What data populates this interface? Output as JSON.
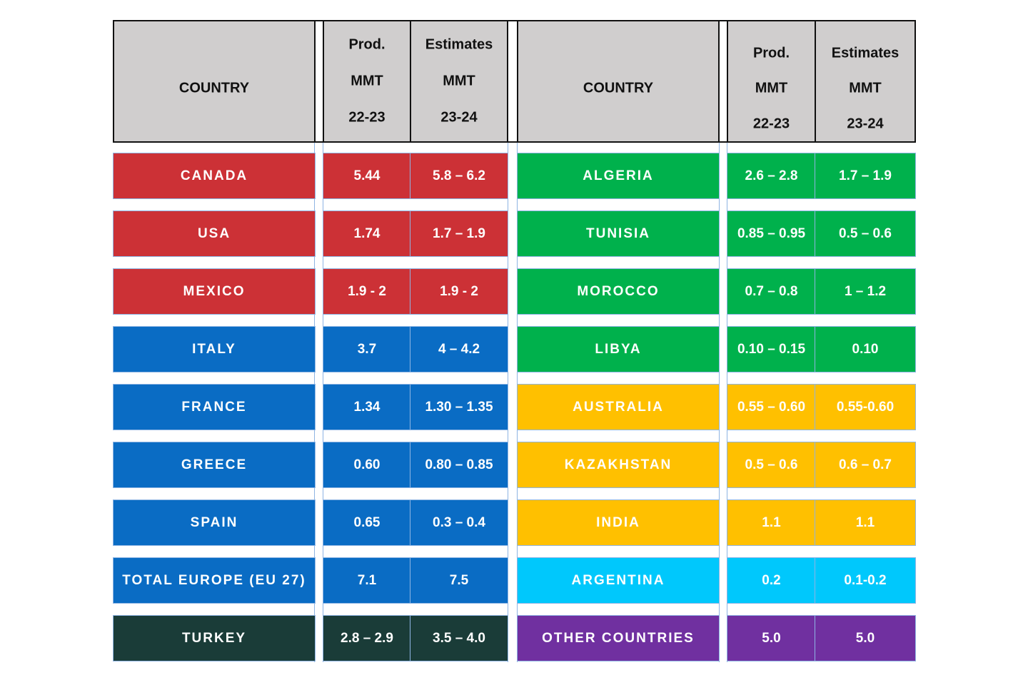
{
  "header": {
    "left": {
      "country": "COUNTRY",
      "prod": [
        "Prod.",
        "MMT",
        "22-23"
      ],
      "est": [
        "Estimates",
        "MMT",
        "23-24"
      ]
    },
    "right": {
      "country": "COUNTRY",
      "prod": [
        "Prod.",
        "MMT",
        "22-23"
      ],
      "est": [
        "Estimates",
        "MMT",
        "23-24"
      ]
    }
  },
  "table": {
    "left": [
      {
        "country": "CANADA",
        "prod": "5.44",
        "est": "5.8 – 6.2",
        "color": "#cc3136"
      },
      {
        "country": "USA",
        "prod": "1.74",
        "est": "1.7 – 1.9",
        "color": "#cc3136"
      },
      {
        "country": "MEXICO",
        "prod": "1.9 - 2",
        "est": "1.9 - 2",
        "color": "#cc3136"
      },
      {
        "country": "ITALY",
        "prod": "3.7",
        "est": "4 – 4.2",
        "color": "#0a6cc4"
      },
      {
        "country": "FRANCE",
        "prod": "1.34",
        "est": "1.30 – 1.35",
        "color": "#0a6cc4"
      },
      {
        "country": "GREECE",
        "prod": "0.60",
        "est": "0.80 – 0.85",
        "color": "#0a6cc4"
      },
      {
        "country": "SPAIN",
        "prod": "0.65",
        "est": "0.3 – 0.4",
        "color": "#0a6cc4"
      },
      {
        "country": "TOTAL EUROPE (EU 27)",
        "prod": "7.1",
        "est": "7.5",
        "color": "#0a6cc4"
      },
      {
        "country": "TURKEY",
        "prod": "2.8 – 2.9",
        "est": "3.5 – 4.0",
        "color": "#1a3c38"
      }
    ],
    "right": [
      {
        "country": "ALGERIA",
        "prod": "2.6 – 2.8",
        "est": "1.7 – 1.9",
        "color": "#00b14c"
      },
      {
        "country": "TUNISIA",
        "prod": "0.85 – 0.95",
        "est": "0.5 – 0.6",
        "color": "#00b14c"
      },
      {
        "country": "MOROCCO",
        "prod": "0.7 – 0.8",
        "est": "1 – 1.2",
        "color": "#00b14c"
      },
      {
        "country": "LIBYA",
        "prod": "0.10 – 0.15",
        "est": "0.10",
        "color": "#00b14c"
      },
      {
        "country": "AUSTRALIA",
        "prod": "0.55 – 0.60",
        "est": "0.55-0.60",
        "color": "#ffc000"
      },
      {
        "country": "KAZAKHSTAN",
        "prod": "0.5 – 0.6",
        "est": "0.6 – 0.7",
        "color": "#ffc000"
      },
      {
        "country": "INDIA",
        "prod": "1.1",
        "est": "1.1",
        "color": "#ffc000"
      },
      {
        "country": "ARGENTINA",
        "prod": "0.2",
        "est": "0.1-0.2",
        "color": "#00c8fc"
      },
      {
        "country": "OTHER COUNTRIES",
        "prod": "5.0",
        "est": "5.0",
        "color": "#7030a0"
      }
    ]
  }
}
